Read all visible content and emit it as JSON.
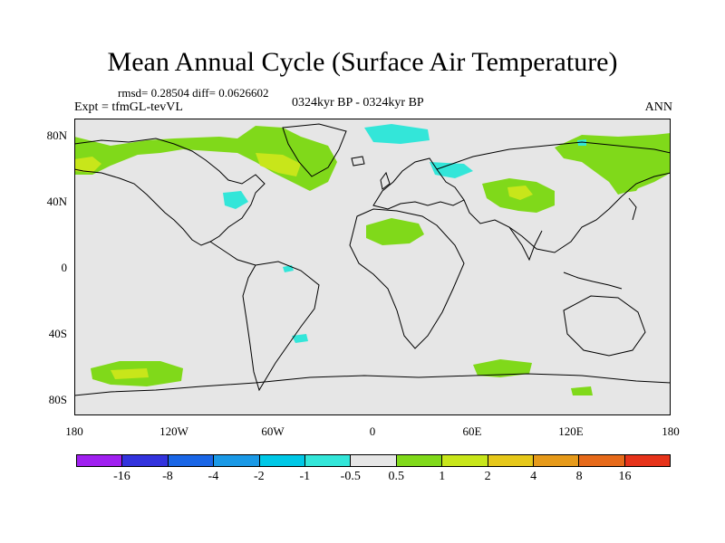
{
  "title": "Mean Annual Cycle (Surface Air Temperature)",
  "stats": "rmsd= 0.28504 diff= 0.0626602",
  "experiment": "Expt = tfmGL-tevVL",
  "period": "0324kyr BP - 0324kyr BP",
  "season": "ANN",
  "map": {
    "background_color": "#e6e6e6",
    "coastline_color": "#000000",
    "lat_ticks": [
      "80N",
      "40N",
      "0",
      "40S",
      "80S"
    ],
    "lon_ticks": [
      "180",
      "120W",
      "60W",
      "0",
      "60E",
      "120E",
      "180"
    ]
  },
  "colorbar": {
    "colors": [
      "#a020f0",
      "#3333dd",
      "#1a66e6",
      "#1a99e6",
      "#00c8e6",
      "#33e6d9",
      "#e6e6e6",
      "#80d91a",
      "#c8e61a",
      "#e6c81a",
      "#e69a1a",
      "#e66a1a",
      "#e6331a"
    ],
    "labels": [
      "-16",
      "-8",
      "-4",
      "-2",
      "-1",
      "-0.5",
      "0.5",
      "1",
      "2",
      "4",
      "8",
      "16"
    ]
  }
}
